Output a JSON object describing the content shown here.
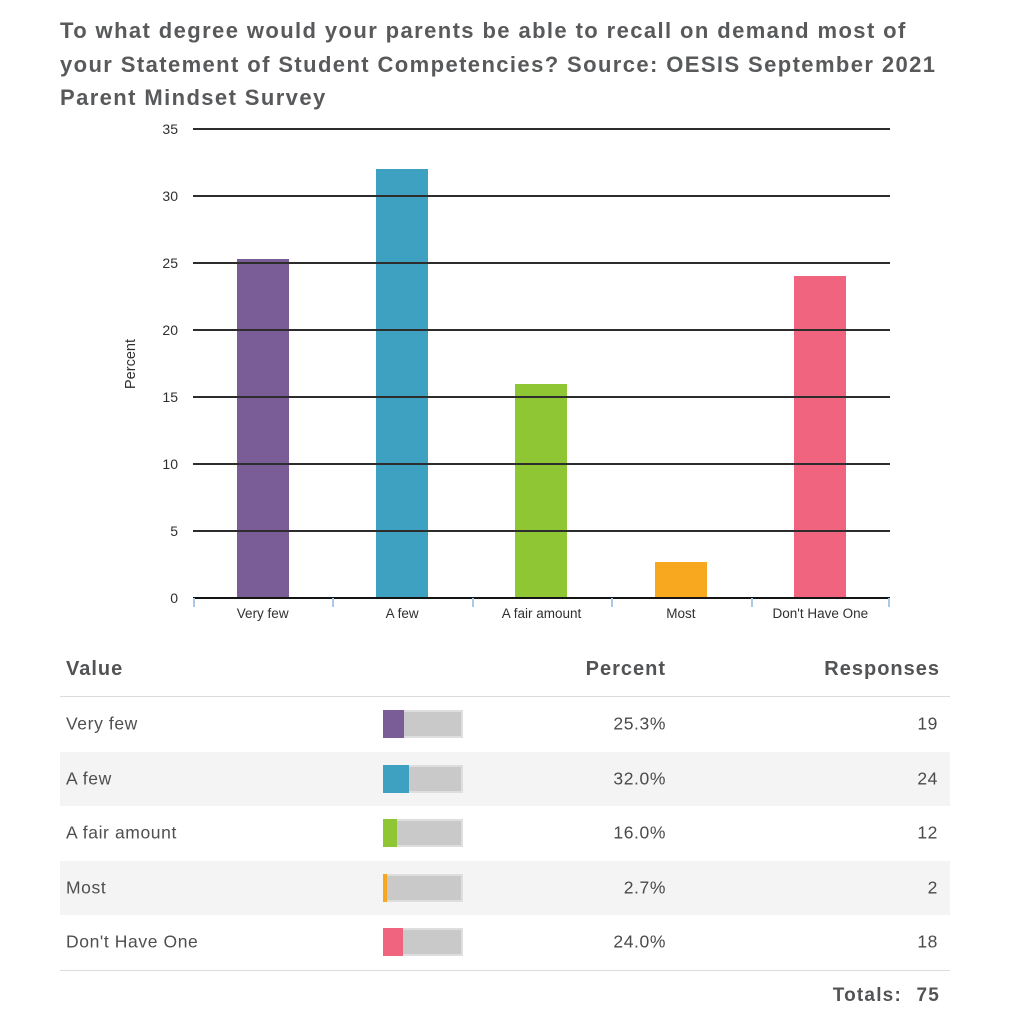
{
  "title": "To what degree would your parents be able to recall on demand most of your Statement of Student Competencies? Source: OESIS September 2021 Parent Mindset Survey",
  "chart_data": {
    "type": "bar",
    "categories": [
      "Very few",
      "A few",
      "A fair amount",
      "Most",
      "Don't Have One"
    ],
    "values": [
      25.3,
      32.0,
      16.0,
      2.7,
      24.0
    ],
    "colors": [
      "#7a5c96",
      "#3fa1c1",
      "#8ec634",
      "#f7a81f",
      "#f0647f"
    ],
    "title": "To what degree would your parents be able to recall on demand most of your Statement of Student Competencies? Source: OESIS September 2021 Parent Mindset Survey",
    "xlabel": "",
    "ylabel": "Percent",
    "ylim": [
      0,
      35
    ],
    "yticks": [
      0,
      5,
      10,
      15,
      20,
      25,
      30,
      35
    ],
    "grid": true,
    "legend": "none"
  },
  "table": {
    "headers": {
      "value": "Value",
      "percent": "Percent",
      "responses": "Responses"
    },
    "rows": [
      {
        "label": "Very few",
        "percent": "25.3%",
        "percent_value": 25.3,
        "responses": "19",
        "color": "#7a5c96"
      },
      {
        "label": "A few",
        "percent": "32.0%",
        "percent_value": 32.0,
        "responses": "24",
        "color": "#3fa1c1"
      },
      {
        "label": "A fair amount",
        "percent": "16.0%",
        "percent_value": 16.0,
        "responses": "12",
        "color": "#8ec634"
      },
      {
        "label": "Most",
        "percent": "2.7%",
        "percent_value": 2.7,
        "responses": "2",
        "color": "#f7a81f"
      },
      {
        "label": "Don't Have One",
        "percent": "24.0%",
        "percent_value": 24.0,
        "responses": "18",
        "color": "#f0647f"
      }
    ],
    "totals_label": "Totals:",
    "totals_value": "75",
    "minibar_track_color": "#c9c9c9"
  }
}
